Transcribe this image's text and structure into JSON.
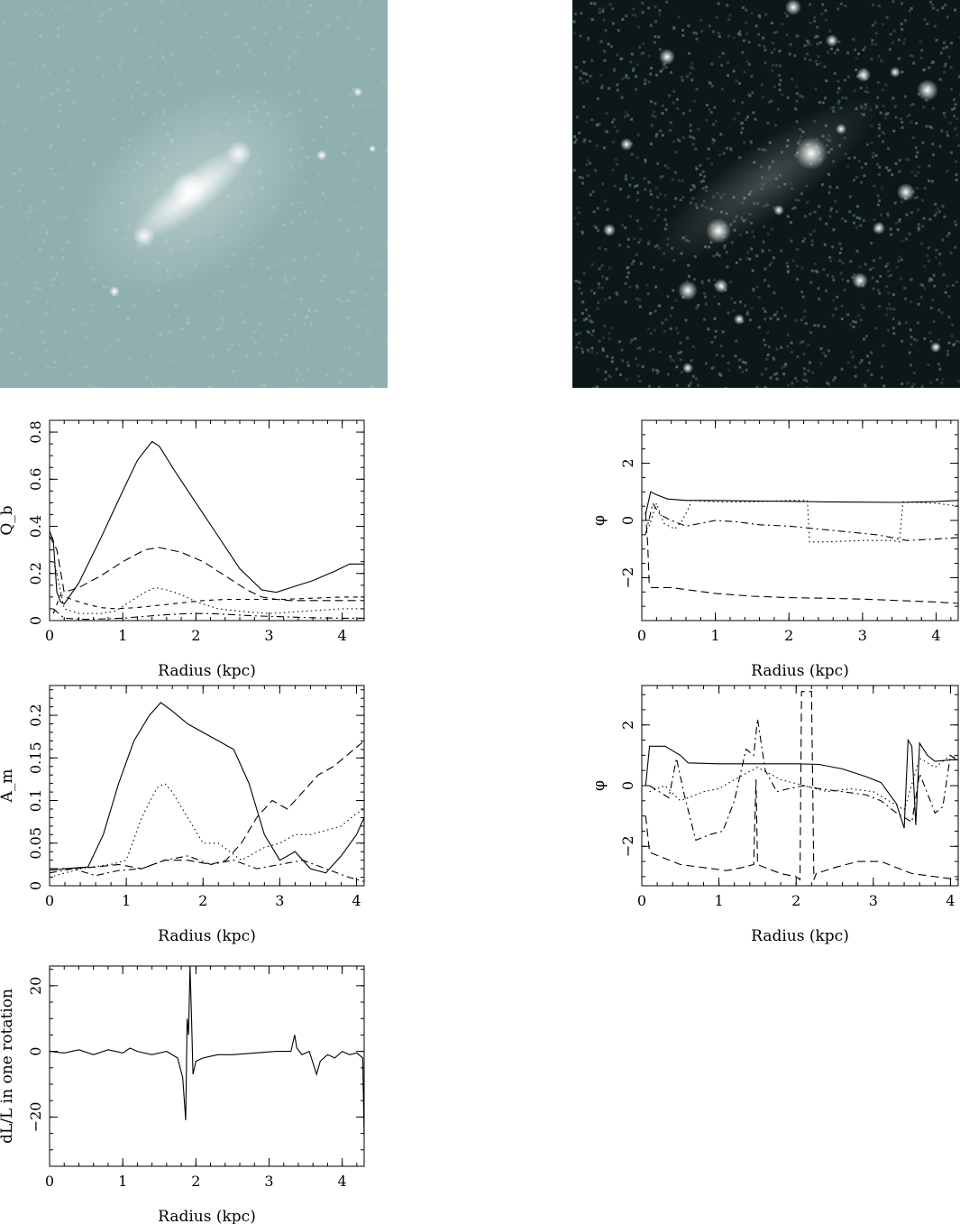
{
  "images": [
    {
      "kind": "galaxy-image-bright",
      "colormap": [
        "#8fb0ae",
        "#f2fbfb"
      ]
    },
    {
      "kind": "galaxy-image-dark",
      "colormap": [
        "#0d1717",
        "#ffffff"
      ]
    }
  ],
  "chart_data": [
    {
      "id": "qb",
      "type": "line",
      "xlabel": "Radius (kpc)",
      "ylabel": "Q_b",
      "xlim": [
        0,
        4.3
      ],
      "ylim": [
        0,
        0.85
      ],
      "xticks": [
        "0",
        "1",
        "2",
        "3",
        "4"
      ],
      "yticks": [
        "0",
        "0.2",
        "0.4",
        "0.6",
        "0.8"
      ],
      "series": [
        {
          "style": "solid",
          "x": [
            0,
            0.05,
            0.1,
            0.15,
            0.2,
            0.4,
            0.7,
            1.0,
            1.2,
            1.4,
            1.5,
            1.7,
            2.0,
            2.3,
            2.6,
            2.9,
            3.1,
            3.3,
            3.6,
            3.9,
            4.1,
            4.3
          ],
          "y": [
            0.38,
            0.34,
            0.12,
            0.08,
            0.07,
            0.16,
            0.35,
            0.55,
            0.68,
            0.76,
            0.74,
            0.64,
            0.5,
            0.36,
            0.22,
            0.13,
            0.12,
            0.14,
            0.17,
            0.21,
            0.24,
            0.24
          ]
        },
        {
          "style": "long-dash",
          "x": [
            0,
            0.1,
            0.2,
            0.4,
            0.7,
            1.0,
            1.3,
            1.5,
            1.8,
            2.1,
            2.4,
            2.7,
            2.9,
            3.1,
            3.3,
            3.6,
            4.0,
            4.3
          ],
          "y": [
            0.36,
            0.3,
            0.12,
            0.14,
            0.19,
            0.25,
            0.3,
            0.31,
            0.29,
            0.25,
            0.19,
            0.13,
            0.1,
            0.09,
            0.085,
            0.085,
            0.085,
            0.085
          ]
        },
        {
          "style": "dotted",
          "x": [
            0.05,
            0.1,
            0.2,
            0.4,
            0.7,
            0.9,
            1.1,
            1.3,
            1.45,
            1.6,
            1.8,
            2.0,
            2.3,
            2.6,
            3.0,
            3.5,
            4.0,
            4.3
          ],
          "y": [
            0.25,
            0.2,
            0.05,
            0.03,
            0.03,
            0.04,
            0.08,
            0.12,
            0.14,
            0.13,
            0.11,
            0.08,
            0.05,
            0.04,
            0.03,
            0.04,
            0.05,
            0.05
          ]
        },
        {
          "style": "short-dash",
          "x": [
            0.05,
            0.15,
            0.3,
            0.5,
            0.7,
            0.9,
            1.2,
            1.5,
            1.8,
            2.1,
            2.4,
            2.7,
            2.9,
            3.2,
            3.6,
            4.0,
            4.3
          ],
          "y": [
            0.03,
            0.11,
            0.09,
            0.07,
            0.055,
            0.05,
            0.055,
            0.065,
            0.075,
            0.085,
            0.09,
            0.09,
            0.09,
            0.09,
            0.095,
            0.1,
            0.1
          ]
        },
        {
          "style": "dot-dash",
          "x": [
            0.05,
            0.2,
            0.5,
            0.8,
            1.0,
            1.3,
            1.6,
            1.9,
            2.2,
            2.5,
            2.8,
            3.0,
            3.3,
            3.6,
            4.0,
            4.3
          ],
          "y": [
            0.05,
            0.01,
            0.005,
            0.008,
            0.01,
            0.018,
            0.025,
            0.03,
            0.03,
            0.025,
            0.02,
            0.018,
            0.015,
            0.012,
            0.01,
            0.01
          ]
        }
      ]
    },
    {
      "id": "phi-1",
      "type": "line",
      "xlabel": "Radius (kpc)",
      "ylabel": "φ",
      "xlim": [
        0,
        4.3
      ],
      "ylim": [
        -3.5,
        3.5
      ],
      "xticks": [
        "0",
        "1",
        "2",
        "3",
        "4"
      ],
      "yticks": [
        "−2",
        "0",
        "2"
      ],
      "series": [
        {
          "style": "solid",
          "x": [
            0.05,
            0.12,
            0.2,
            0.35,
            0.6,
            1.0,
            1.5,
            2.0,
            2.5,
            3.0,
            3.5,
            4.0,
            4.3
          ],
          "y": [
            0.2,
            1.0,
            0.9,
            0.75,
            0.7,
            0.7,
            0.68,
            0.67,
            0.65,
            0.64,
            0.63,
            0.66,
            0.7
          ]
        },
        {
          "style": "long-dash",
          "x": [
            0.05,
            0.08,
            0.1,
            0.13,
            0.2,
            0.4,
            0.7,
            1.0,
            1.5,
            2.0,
            2.5,
            3.0,
            3.5,
            4.0,
            4.3
          ],
          "y": [
            0.3,
            -0.8,
            -2.2,
            -2.35,
            -2.35,
            -2.35,
            -2.45,
            -2.55,
            -2.65,
            -2.7,
            -2.72,
            -2.75,
            -2.8,
            -2.85,
            -2.9
          ]
        },
        {
          "style": "dotted",
          "x": [
            0.1,
            0.2,
            0.3,
            0.45,
            0.55,
            0.65,
            0.67,
            1.0,
            1.5,
            2.0,
            2.25,
            2.28,
            2.5,
            3.0,
            3.4,
            3.5,
            3.55,
            4.0,
            4.3
          ],
          "y": [
            -0.2,
            0.6,
            -0.1,
            -0.3,
            0.0,
            0.5,
            0.7,
            0.65,
            0.65,
            0.7,
            0.7,
            -0.75,
            -0.75,
            -0.7,
            -0.7,
            -0.75,
            0.65,
            0.6,
            0.5
          ]
        },
        {
          "style": "dot-dash",
          "x": [
            0.05,
            0.15,
            0.25,
            0.4,
            0.6,
            0.8,
            1.0,
            1.3,
            1.6,
            2.0,
            2.4,
            2.8,
            3.2,
            3.6,
            4.0,
            4.3
          ],
          "y": [
            -0.5,
            0.6,
            0.2,
            0.0,
            -0.2,
            -0.1,
            0.0,
            -0.05,
            -0.15,
            -0.2,
            -0.3,
            -0.4,
            -0.5,
            -0.7,
            -0.65,
            -0.6
          ]
        }
      ]
    },
    {
      "id": "am",
      "type": "line",
      "xlabel": "Radius (kpc)",
      "ylabel": "A_m",
      "xlim": [
        0,
        4.1
      ],
      "ylim": [
        0,
        0.235
      ],
      "xticks": [
        "0",
        "1",
        "2",
        "3",
        "4"
      ],
      "yticks": [
        "0",
        "0.05",
        "0.1",
        "0.15",
        "0.2"
      ],
      "series": [
        {
          "style": "solid",
          "x": [
            0,
            0.2,
            0.5,
            0.7,
            0.9,
            1.1,
            1.3,
            1.45,
            1.6,
            1.8,
            2.0,
            2.2,
            2.4,
            2.6,
            2.8,
            3.0,
            3.2,
            3.4,
            3.6,
            3.8,
            4.0,
            4.1
          ],
          "y": [
            0.018,
            0.02,
            0.022,
            0.06,
            0.12,
            0.17,
            0.2,
            0.215,
            0.205,
            0.19,
            0.18,
            0.17,
            0.16,
            0.12,
            0.06,
            0.03,
            0.04,
            0.02,
            0.015,
            0.035,
            0.06,
            0.08
          ]
        },
        {
          "style": "dotted",
          "x": [
            0,
            0.4,
            0.8,
            1.0,
            1.2,
            1.4,
            1.5,
            1.6,
            1.8,
            2.0,
            2.2,
            2.5,
            2.8,
            3.0,
            3.2,
            3.4,
            3.6,
            3.8,
            4.0,
            4.1
          ],
          "y": [
            0.01,
            0.02,
            0.025,
            0.03,
            0.08,
            0.115,
            0.12,
            0.11,
            0.08,
            0.05,
            0.05,
            0.03,
            0.045,
            0.05,
            0.06,
            0.06,
            0.065,
            0.07,
            0.085,
            0.09
          ]
        },
        {
          "style": "long-dash",
          "x": [
            0,
            0.3,
            0.6,
            0.9,
            1.2,
            1.5,
            1.8,
            2.1,
            2.3,
            2.5,
            2.7,
            2.9,
            3.1,
            3.3,
            3.5,
            3.7,
            3.9,
            4.1
          ],
          "y": [
            0.02,
            0.02,
            0.022,
            0.025,
            0.02,
            0.03,
            0.03,
            0.025,
            0.03,
            0.05,
            0.08,
            0.1,
            0.09,
            0.11,
            0.13,
            0.14,
            0.155,
            0.17
          ]
        },
        {
          "style": "dot-dash",
          "x": [
            0,
            0.3,
            0.6,
            0.9,
            1.2,
            1.5,
            1.8,
            2.1,
            2.4,
            2.7,
            3.0,
            3.3,
            3.6,
            3.9,
            4.1
          ],
          "y": [
            0.015,
            0.02,
            0.012,
            0.018,
            0.02,
            0.03,
            0.035,
            0.025,
            0.03,
            0.02,
            0.025,
            0.03,
            0.02,
            0.01,
            0.005
          ]
        }
      ]
    },
    {
      "id": "phi-2",
      "type": "line",
      "xlabel": "Radius (kpc)",
      "ylabel": "φ",
      "xlim": [
        0,
        4.1
      ],
      "ylim": [
        -3.3,
        3.3
      ],
      "xticks": [
        "0",
        "1",
        "2",
        "3",
        "4"
      ],
      "yticks": [
        "−2",
        "0",
        "2"
      ],
      "series": [
        {
          "style": "solid",
          "x": [
            0.05,
            0.1,
            0.3,
            0.5,
            0.6,
            1.0,
            1.5,
            2.0,
            2.3,
            2.6,
            2.9,
            3.1,
            3.3,
            3.4,
            3.45,
            3.5,
            3.55,
            3.6,
            3.7,
            3.8,
            4.0,
            4.1
          ],
          "y": [
            0,
            1.3,
            1.3,
            1.0,
            0.75,
            0.72,
            0.72,
            0.72,
            0.7,
            0.55,
            0.3,
            0.1,
            -0.6,
            -1.4,
            1.5,
            1.3,
            -1.3,
            1.4,
            1.0,
            0.8,
            0.85,
            0.85
          ]
        },
        {
          "style": "long-dash",
          "x": [
            0.05,
            0.1,
            0.3,
            0.5,
            0.8,
            1.1,
            1.3,
            1.45,
            1.48,
            1.5,
            1.8,
            2.0,
            2.05,
            2.07,
            2.2,
            2.23,
            2.26,
            2.5,
            2.8,
            3.1,
            3.5,
            4.1
          ],
          "y": [
            -1.0,
            -2.2,
            -2.4,
            -2.6,
            -2.7,
            -2.8,
            -2.7,
            -2.6,
            0.2,
            -2.6,
            -2.9,
            -3.0,
            -3.1,
            3.1,
            3.1,
            -3.1,
            -2.9,
            -2.7,
            -2.5,
            -2.5,
            -2.9,
            -3.1
          ]
        },
        {
          "style": "dotted",
          "x": [
            0.1,
            0.3,
            0.5,
            0.8,
            1.0,
            1.2,
            1.5,
            1.8,
            2.1,
            2.4,
            2.7,
            3.0,
            3.2,
            3.4,
            3.6,
            3.8,
            4.0,
            4.1
          ],
          "y": [
            -0.2,
            0.0,
            -0.5,
            -0.2,
            -0.1,
            0.2,
            0.6,
            0.2,
            0.0,
            -0.2,
            -0.1,
            -0.2,
            -0.5,
            -0.8,
            0.9,
            0.6,
            1.0,
            0.9
          ]
        },
        {
          "style": "dot-dash",
          "x": [
            0.1,
            0.35,
            0.45,
            0.55,
            0.7,
            0.9,
            1.05,
            1.2,
            1.35,
            1.45,
            1.5,
            1.6,
            1.75,
            1.9,
            2.1,
            2.3,
            2.6,
            2.9,
            3.1,
            3.3,
            3.5,
            3.6,
            3.8,
            3.9,
            4.0,
            4.1
          ],
          "y": [
            0.0,
            -0.4,
            0.9,
            -0.3,
            -1.8,
            -1.6,
            -1.5,
            -0.5,
            1.2,
            1.0,
            2.2,
            0.5,
            -0.2,
            -0.1,
            0.0,
            -0.1,
            -0.2,
            -0.3,
            -0.5,
            -0.9,
            -1.2,
            0.4,
            -0.9,
            -0.7,
            1.0,
            0.8
          ]
        }
      ]
    },
    {
      "id": "dl",
      "type": "line",
      "xlabel": "Radius (kpc)",
      "ylabel": "dL/L in one rotation",
      "xlim": [
        0,
        4.3
      ],
      "ylim": [
        -35,
        26
      ],
      "xticks": [
        "0",
        "1",
        "2",
        "3",
        "4"
      ],
      "yticks": [
        "−20",
        "0",
        "20"
      ],
      "series": [
        {
          "style": "solid",
          "x": [
            0,
            0.2,
            0.4,
            0.6,
            0.8,
            1.0,
            1.1,
            1.2,
            1.4,
            1.6,
            1.75,
            1.82,
            1.86,
            1.88,
            1.9,
            1.92,
            1.94,
            1.96,
            1.98,
            2.0,
            2.1,
            2.3,
            2.5,
            2.8,
            3.1,
            3.3,
            3.35,
            3.38,
            3.45,
            3.55,
            3.65,
            3.7,
            3.8,
            3.9,
            4.0,
            4.1,
            4.2,
            4.28,
            4.3
          ],
          "y": [
            0,
            -0.5,
            0.5,
            -1,
            0.5,
            -0.5,
            1,
            0,
            -1,
            0,
            -2,
            -8,
            -21,
            10,
            5,
            26,
            10,
            -7,
            -5,
            -3,
            -2,
            -1,
            -1,
            -0.5,
            0,
            0,
            5,
            1,
            -1,
            0,
            -7,
            -3,
            -1,
            -2,
            0,
            -1,
            -0.5,
            -2,
            -26
          ]
        }
      ]
    }
  ]
}
